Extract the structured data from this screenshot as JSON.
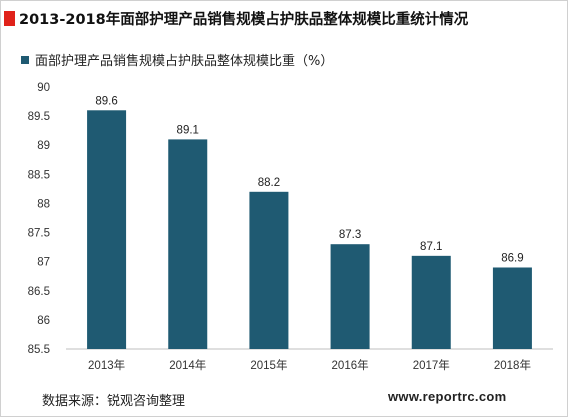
{
  "title": "2013-2018年面部护理产品销售规模占护肤品整体规模比重统计情况",
  "legend": {
    "label": "面部护理产品销售规模占护肤品整体规模比重（%）"
  },
  "footer": {
    "source": "数据来源：锐观咨询整理",
    "website": "www.reportrc.com"
  },
  "colors": {
    "bar": "#1f5a72",
    "accent": "#e0221a"
  },
  "chart_data": {
    "type": "bar",
    "categories": [
      "2013年",
      "2014年",
      "2015年",
      "2016年",
      "2017年",
      "2018年"
    ],
    "series": [
      {
        "name": "面部护理产品销售规模占护肤品整体规模比重（%）",
        "values": [
          89.6,
          89.1,
          88.2,
          87.3,
          87.1,
          86.9
        ]
      }
    ],
    "ylim": [
      85.5,
      90
    ],
    "yticks": [
      "85.5",
      "86",
      "86.5",
      "87",
      "87.5",
      "88",
      "88.5",
      "89",
      "89.5",
      "90"
    ],
    "data_labels": [
      "89.6",
      "89.1",
      "88.2",
      "87.3",
      "87.1",
      "86.9"
    ],
    "grid": false,
    "legend_position": "top-left"
  }
}
